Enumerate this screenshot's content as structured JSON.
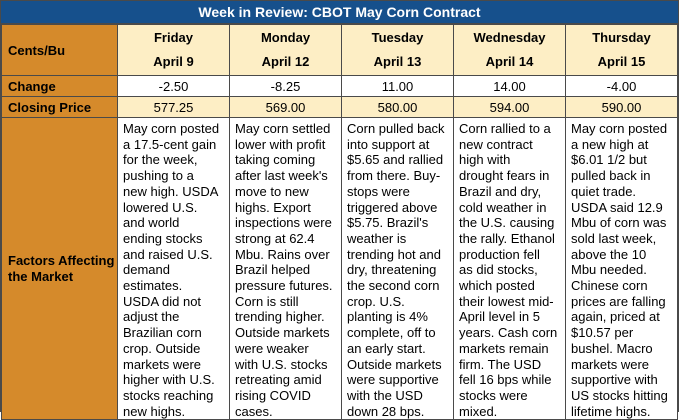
{
  "title": "Week in Review: CBOT May Corn Contract",
  "header_label": "Cents/Bu",
  "row_labels": {
    "change": "Change",
    "closing": "Closing Price",
    "factors": "Factors Affecting the Market"
  },
  "days": [
    {
      "day": "Friday",
      "date": "April 9",
      "change": "-2.50",
      "close": "577.25",
      "factors": "May corn posted\na 17.5-cent gain\nfor the week,\npushing to a\nnew high. USDA\nlowered U.S.\nand world\nending stocks\nand raised U.S.\ndemand\nestimates.\nUSDA did not\nadjust the\nBrazilian corn\ncrop. Outside\nmarkets were\nhigher with U.S.\nstocks reaching\nnew highs."
    },
    {
      "day": "Monday",
      "date": "April 12",
      "change": "-8.25",
      "close": "569.00",
      "factors": "May corn settled\nlower with profit\ntaking coming\nafter last week's\nmove to new\nhighs. Export\ninspections were\nstrong at 62.4\nMbu. Rains over\nBrazil helped\npressure futures.\nCorn is still\ntrending higher.\nOutside markets\nwere weaker\nwith U.S. stocks\nretreating amid\nrising COVID\ncases."
    },
    {
      "day": "Tuesday",
      "date": "April 13",
      "change": "11.00",
      "close": "580.00",
      "factors": "Corn pulled back\ninto support at\n$5.65 and rallied\nfrom there. Buy-\nstops were\ntriggered above\n$5.75. Brazil's\nweather is\ntrending hot and\ndry, threatening\nthe second corn\ncrop. U.S.\nplanting is 4%\ncomplete, off to\nan early start.\nOutside markets\nwere supportive\nwith the USD\ndown 28 bps."
    },
    {
      "day": "Wednesday",
      "date": "April 14",
      "change": "14.00",
      "close": "594.00",
      "factors": "Corn rallied to a\nnew contract\nhigh with\ndrought fears in\nBrazil and dry,\ncold weather in\nthe U.S. causing\nthe rally. Ethanol\nproduction fell\nas did stocks,\nwhich posted\ntheir lowest mid-\nApril level in 5\nyears. Cash corn\nmarkets remain\nfirm. The USD\nfell 16 bps while\nstocks were\nmixed."
    },
    {
      "day": "Thursday",
      "date": "April 15",
      "change": "-4.00",
      "close": "590.00",
      "factors": "May corn posted\na new high at\n$6.01 1/2 but\npulled back in\nquiet trade.\nUSDA said 12.9\nMbu of corn was\nsold last week,\nabove the 10\nMbu needed.\nChinese corn\nprices are falling\nagain, priced at\n$10.57 per\nbushel. Macro\nmarkets were\nsupportive with\nUS stocks hitting\nlifetime highs."
    }
  ]
}
